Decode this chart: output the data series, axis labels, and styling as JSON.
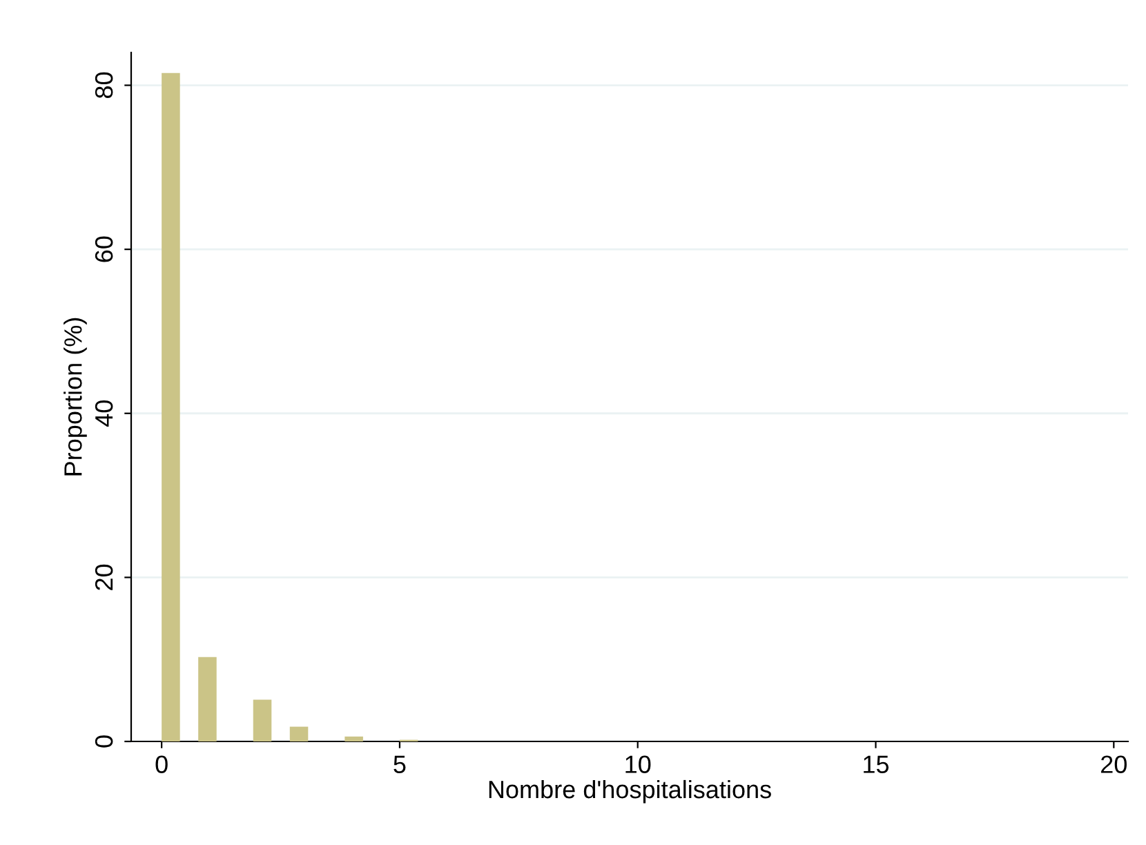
{
  "chart_data": {
    "type": "histogram",
    "xlabel": "Nombre d'hospitalisations",
    "ylabel": "Proportion (%)",
    "bins": [
      0,
      0.385,
      0.769,
      1.154,
      1.538,
      1.923,
      2.308,
      2.692,
      3.077,
      3.462,
      3.846,
      4.231,
      4.615,
      5.0,
      5.385,
      5.769,
      6.154,
      6.538,
      6.923,
      7.308,
      7.692,
      8.077,
      8.462,
      8.846,
      9.231,
      9.615,
      10.0,
      10.385,
      10.769,
      11.154,
      11.538,
      11.923,
      12.308,
      12.692,
      13.077,
      13.462,
      13.846,
      14.231,
      14.615,
      15.0,
      15.385,
      15.769,
      16.154,
      16.538,
      16.923,
      17.308,
      17.692,
      18.077,
      18.462,
      18.846,
      19.231,
      19.615,
      20.0
    ],
    "values": [
      81.5,
      0,
      10.3,
      0,
      0,
      5.1,
      0,
      1.8,
      0,
      0,
      0.6,
      0,
      0,
      0.2,
      0,
      0,
      0,
      0,
      0,
      0,
      0,
      0,
      0,
      0,
      0,
      0,
      0,
      0,
      0,
      0,
      0,
      0,
      0,
      0,
      0,
      0,
      0,
      0,
      0,
      0,
      0,
      0,
      0,
      0,
      0,
      0,
      0,
      0,
      0,
      0,
      0,
      0
    ],
    "color": "#cbc487",
    "xlim": [
      -0.64,
      20.3
    ],
    "xticks": [
      0,
      5,
      10,
      15,
      20
    ],
    "ylim": [
      0,
      84
    ],
    "yticks": [
      0,
      20,
      40,
      60,
      80
    ],
    "grid": "y"
  }
}
